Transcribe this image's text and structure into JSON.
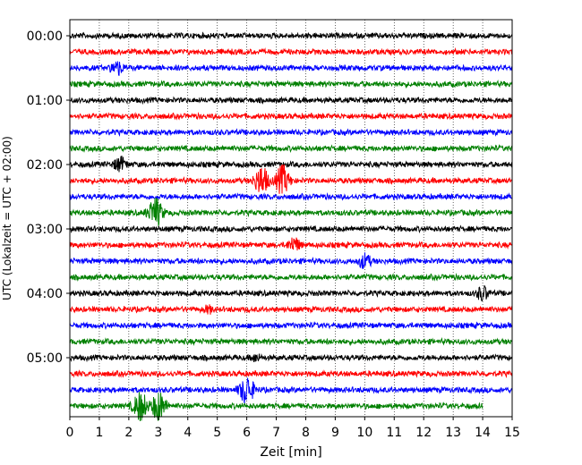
{
  "chart_data": {
    "type": "line",
    "title": "",
    "xlabel": "Zeit  [min]",
    "ylabel": "UTC (Lokalzeit = UTC + 02:00)",
    "xlim": [
      0,
      15
    ],
    "x_ticks": [
      "0",
      "1",
      "2",
      "3",
      "4",
      "5",
      "6",
      "7",
      "8",
      "9",
      "10",
      "11",
      "12",
      "13",
      "14",
      "15"
    ],
    "y_ticks": [
      "00:00",
      "01:00",
      "02:00",
      "03:00",
      "04:00",
      "05:00"
    ],
    "grid": "vertical dotted lines at each minute",
    "trace_interval_minutes": 15,
    "trace_count": 24,
    "last_trace_end_minute": 14,
    "color_cycle": [
      "#000000",
      "#ff0000",
      "#0000ff",
      "#008000"
    ],
    "events": [
      {
        "trace": "00:30",
        "minute": 1.6,
        "amplitude": "medium"
      },
      {
        "trace": "02:00",
        "minute": 1.7,
        "amplitude": "medium"
      },
      {
        "trace": "02:15",
        "minute": 6.5,
        "amplitude": "large"
      },
      {
        "trace": "02:15",
        "minute": 7.2,
        "amplitude": "large"
      },
      {
        "trace": "02:45",
        "minute": 2.9,
        "amplitude": "large"
      },
      {
        "trace": "03:15",
        "minute": 7.6,
        "amplitude": "medium"
      },
      {
        "trace": "03:30",
        "minute": 10.0,
        "amplitude": "medium"
      },
      {
        "trace": "04:00",
        "minute": 14.0,
        "amplitude": "medium"
      },
      {
        "trace": "04:15",
        "minute": 4.7,
        "amplitude": "small"
      },
      {
        "trace": "05:00",
        "minute": 6.3,
        "amplitude": "small"
      },
      {
        "trace": "05:30",
        "minute": 6.0,
        "amplitude": "large"
      },
      {
        "trace": "05:45",
        "minute": 2.4,
        "amplitude": "large"
      },
      {
        "trace": "05:45",
        "minute": 3.0,
        "amplitude": "large"
      }
    ]
  }
}
